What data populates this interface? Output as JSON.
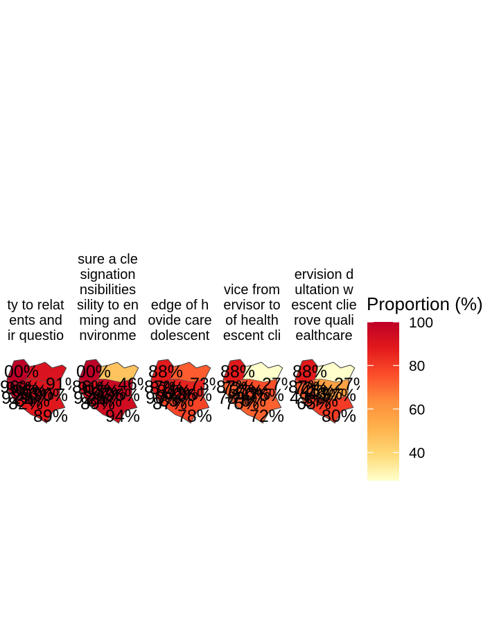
{
  "chart_data": {
    "type": "choropleth",
    "legend": {
      "title": "Proportion (%)",
      "ticks": [
        100,
        80,
        60,
        40
      ],
      "range": [
        27,
        100
      ],
      "colors": [
        "#ffffcc",
        "#fed976",
        "#feb24c",
        "#fd8d3c",
        "#fc4e2a",
        "#e31a1c",
        "#bd0026"
      ],
      "placement": "right"
    },
    "panels": [
      {
        "title_lines": [
          "ty to relat",
          "ents and",
          "ir questio"
        ],
        "regions": [
          {
            "value": 100,
            "label": "00%"
          },
          {
            "value": 91,
            "label": "91%"
          },
          {
            "value": 96,
            "label": "96%"
          },
          {
            "value": 90,
            "label": "90%"
          },
          {
            "value": 89,
            "label": "89%"
          }
        ],
        "extra_labels": [
          "96%",
          "86%",
          "93%",
          "92%",
          "84%",
          "82%"
        ]
      },
      {
        "title_lines": [
          "sure a cle",
          "signation",
          "nsibilities",
          "sility to en",
          "ming and",
          "nvironme"
        ],
        "regions": [
          {
            "value": 100,
            "label": "00%"
          },
          {
            "value": 46,
            "label": "46%"
          },
          {
            "value": 91,
            "label": "91%"
          },
          {
            "value": 96,
            "label": "96%"
          },
          {
            "value": 94,
            "label": "94%"
          }
        ],
        "extra_labels": [
          "86%",
          "93%",
          "97%",
          "92%",
          "84%",
          "89%"
        ]
      },
      {
        "title_lines": [
          "edge of h",
          "ovide care",
          "dolescent"
        ],
        "regions": [
          {
            "value": 88,
            "label": "88%"
          },
          {
            "value": 73,
            "label": "73%"
          },
          {
            "value": 87,
            "label": "87%"
          },
          {
            "value": 86,
            "label": "86%"
          },
          {
            "value": 78,
            "label": "78%"
          }
        ],
        "extra_labels": [
          "87%",
          "84%",
          "82%",
          "90%",
          "83%",
          "87%"
        ]
      },
      {
        "title_lines": [
          "vice from",
          "ervisor to",
          "of health",
          "escent cli"
        ],
        "regions": [
          {
            "value": 88,
            "label": "88%"
          },
          {
            "value": 27,
            "label": "27%"
          },
          {
            "value": 72,
            "label": "72%"
          },
          {
            "value": 76,
            "label": "76%"
          },
          {
            "value": 72,
            "label": "72%"
          }
        ],
        "extra_labels": [
          "87%",
          "57%",
          "50%",
          "78%",
          "76%",
          "75%"
        ]
      },
      {
        "title_lines": [
          "ervision d",
          "ultation w",
          "escent clie",
          "rove quali",
          "ealthcare"
        ],
        "regions": [
          {
            "value": 88,
            "label": "88%"
          },
          {
            "value": 27,
            "label": "27%"
          },
          {
            "value": 72,
            "label": "72%"
          },
          {
            "value": 57,
            "label": "57%"
          },
          {
            "value": 80,
            "label": "80%"
          }
        ],
        "extra_labels": [
          "87%",
          "45%",
          "43%",
          "49%",
          "57%",
          "65%"
        ]
      }
    ]
  }
}
